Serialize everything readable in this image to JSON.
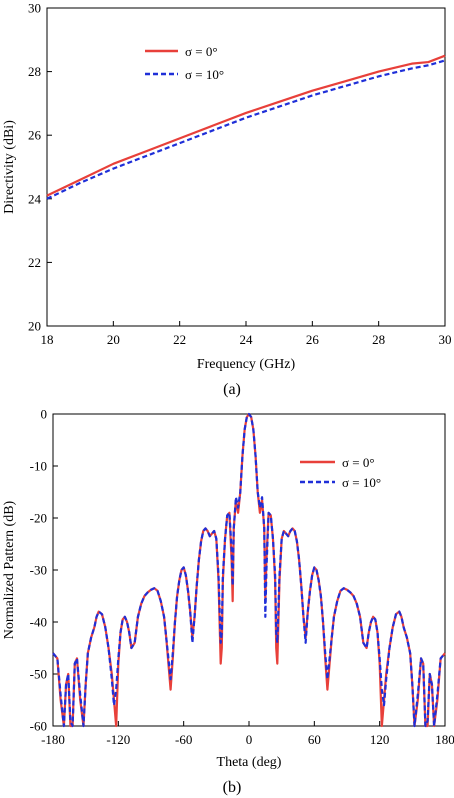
{
  "chart_data": [
    {
      "type": "line",
      "caption": "(a)",
      "xlabel": "Frequency (GHz)",
      "ylabel": "Directivity (dBi)",
      "xlim": [
        18,
        30
      ],
      "ylim": [
        20,
        30
      ],
      "xticks": [
        18,
        20,
        22,
        24,
        26,
        28,
        30
      ],
      "yticks": [
        20,
        22,
        24,
        26,
        28,
        30
      ],
      "grid": false,
      "legend_position": "top-left",
      "series": [
        {
          "name": "σ = 0°",
          "color": "#e8403a",
          "style": "solid",
          "x": [
            18,
            19,
            20,
            21,
            22,
            23,
            24,
            25,
            26,
            27,
            28,
            29,
            29.5,
            30
          ],
          "y": [
            24.1,
            24.6,
            25.1,
            25.5,
            25.9,
            26.3,
            26.7,
            27.05,
            27.4,
            27.7,
            28.0,
            28.25,
            28.3,
            28.5
          ]
        },
        {
          "name": "σ = 10°",
          "color": "#1f2fd8",
          "style": "dashed",
          "x": [
            18,
            19,
            20,
            21,
            22,
            23,
            24,
            25,
            26,
            27,
            28,
            29,
            29.5,
            30
          ],
          "y": [
            24.0,
            24.5,
            24.95,
            25.35,
            25.75,
            26.15,
            26.55,
            26.9,
            27.25,
            27.55,
            27.85,
            28.1,
            28.2,
            28.35
          ]
        }
      ]
    },
    {
      "type": "line",
      "caption": "(b)",
      "xlabel": "Theta (deg)",
      "ylabel": "Normalized Pattern (dB)",
      "xlim": [
        -180,
        180
      ],
      "ylim": [
        -60,
        0
      ],
      "xticks": [
        -180,
        -120,
        -60,
        0,
        60,
        120,
        180
      ],
      "yticks": [
        0,
        -10,
        -20,
        -30,
        -40,
        -50,
        -60
      ],
      "grid": false,
      "legend_position": "top-right",
      "series": [
        {
          "name": "σ = 0°",
          "color": "#e8403a",
          "style": "solid",
          "x": [
            -180,
            -176,
            -173,
            -170,
            -168,
            -166,
            -164,
            -162,
            -160,
            -158,
            -155,
            -152,
            -150,
            -148,
            -145,
            -142,
            -140,
            -138,
            -135,
            -132,
            -129,
            -126,
            -124,
            -122,
            -120,
            -118,
            -116,
            -114,
            -112,
            -110,
            -108,
            -105,
            -102,
            -99,
            -96,
            -93,
            -90,
            -87,
            -84,
            -81,
            -78,
            -76,
            -74,
            -72,
            -70,
            -68,
            -66,
            -64,
            -62,
            -60,
            -58,
            -56,
            -54,
            -52,
            -50,
            -48,
            -46,
            -44,
            -42,
            -40,
            -38,
            -36,
            -34,
            -32,
            -30,
            -28,
            -26,
            -25,
            -24,
            -22,
            -20,
            -18,
            -16,
            -15,
            -14,
            -12,
            -10,
            -8,
            -6,
            -4,
            -2,
            0,
            2,
            4,
            6,
            8,
            10,
            12,
            14,
            15,
            16,
            18,
            20,
            22,
            24,
            25,
            26,
            28,
            30,
            32,
            34,
            36,
            38,
            40,
            42,
            44,
            46,
            48,
            50,
            52,
            54,
            56,
            58,
            60,
            62,
            64,
            66,
            68,
            70,
            72,
            74,
            76,
            78,
            81,
            84,
            87,
            90,
            93,
            96,
            99,
            102,
            105,
            108,
            110,
            112,
            114,
            116,
            118,
            120,
            122,
            124,
            126,
            129,
            132,
            135,
            138,
            140,
            142,
            145,
            148,
            150,
            152,
            155,
            158,
            160,
            162,
            164,
            166,
            168,
            170,
            173,
            176,
            180
          ],
          "y": [
            -46,
            -47,
            -55,
            -60,
            -52,
            -50,
            -60,
            -60,
            -48,
            -47,
            -55,
            -60,
            -52,
            -46,
            -43,
            -41,
            -39,
            -38,
            -38.5,
            -41,
            -45,
            -50,
            -55,
            -60,
            -48,
            -42,
            -39.5,
            -39,
            -40,
            -42,
            -45,
            -44,
            -39,
            -36.5,
            -35,
            -34.3,
            -33.8,
            -33.5,
            -34,
            -36,
            -39,
            -43,
            -48,
            -53,
            -47,
            -40,
            -35,
            -32,
            -30,
            -29.5,
            -31,
            -34,
            -38,
            -43,
            -39,
            -33,
            -28,
            -24.5,
            -22.5,
            -22,
            -22.5,
            -23.5,
            -23,
            -22.5,
            -24,
            -32,
            -48,
            -45,
            -32,
            -24,
            -19.5,
            -19,
            -28,
            -36,
            -22,
            -16.5,
            -19,
            -15,
            -8,
            -3,
            -0.6,
            0,
            -0.6,
            -3,
            -8,
            -15,
            -19,
            -16.5,
            -22,
            -36,
            -28,
            -19,
            -19.5,
            -24,
            -32,
            -45,
            -48,
            -32,
            -24,
            -22.5,
            -23,
            -23.5,
            -22.5,
            -22,
            -22.5,
            -24.5,
            -28,
            -33,
            -39,
            -43,
            -38,
            -34,
            -31,
            -29.5,
            -30,
            -32,
            -35,
            -40,
            -47,
            -53,
            -48,
            -43,
            -39,
            -36,
            -34,
            -33.5,
            -33.8,
            -34.3,
            -35,
            -36.5,
            -39,
            -44,
            -45,
            -42,
            -40,
            -39,
            -39.5,
            -42,
            -48,
            -60,
            -55,
            -50,
            -45,
            -41,
            -38.5,
            -38,
            -39,
            -41,
            -43,
            -46,
            -52,
            -60,
            -55,
            -47,
            -48,
            -60,
            -60,
            -50,
            -52,
            -60,
            -55,
            -47,
            -46
          ]
        },
        {
          "name": "σ = 10°",
          "color": "#1f2fd8",
          "style": "dashed",
          "x": [
            -180,
            -176,
            -173,
            -170,
            -168,
            -166,
            -164,
            -162,
            -160,
            -158,
            -155,
            -152,
            -150,
            -148,
            -145,
            -142,
            -140,
            -138,
            -135,
            -132,
            -129,
            -126,
            -124,
            -122,
            -120,
            -118,
            -116,
            -114,
            -112,
            -110,
            -108,
            -105,
            -102,
            -99,
            -96,
            -93,
            -90,
            -87,
            -84,
            -81,
            -78,
            -76,
            -74,
            -72,
            -70,
            -68,
            -66,
            -64,
            -62,
            -60,
            -58,
            -56,
            -54,
            -52,
            -50,
            -48,
            -46,
            -44,
            -42,
            -40,
            -38,
            -36,
            -34,
            -32,
            -30,
            -28,
            -26,
            -25,
            -24,
            -22,
            -20,
            -18,
            -16,
            -15,
            -14,
            -12,
            -10,
            -8,
            -6,
            -4,
            -2,
            0,
            2,
            4,
            6,
            8,
            10,
            12,
            14,
            15,
            16,
            18,
            20,
            22,
            24,
            25,
            26,
            28,
            30,
            32,
            34,
            36,
            38,
            40,
            42,
            44,
            46,
            48,
            50,
            52,
            54,
            56,
            58,
            60,
            62,
            64,
            66,
            68,
            70,
            72,
            74,
            76,
            78,
            81,
            84,
            87,
            90,
            93,
            96,
            99,
            102,
            105,
            108,
            110,
            112,
            114,
            116,
            118,
            120,
            122,
            124,
            126,
            129,
            132,
            135,
            138,
            140,
            142,
            145,
            148,
            150,
            152,
            155,
            158,
            160,
            162,
            164,
            166,
            168,
            170,
            173,
            176,
            180
          ],
          "y": [
            -46,
            -47,
            -54,
            -60,
            -52,
            -50,
            -59,
            -60,
            -48,
            -47,
            -54,
            -60,
            -52,
            -46,
            -43,
            -41,
            -39,
            -38,
            -38.5,
            -41,
            -45,
            -51,
            -56,
            -53,
            -47,
            -42,
            -39.5,
            -39,
            -40,
            -42,
            -45,
            -44,
            -39,
            -36.5,
            -35,
            -34.3,
            -33.8,
            -33.5,
            -34,
            -36,
            -39,
            -43,
            -47,
            -51,
            -46,
            -40,
            -35,
            -32,
            -30,
            -29.5,
            -31,
            -34,
            -38,
            -44,
            -39,
            -33,
            -28,
            -24.5,
            -22.5,
            -22,
            -22.5,
            -23.5,
            -23,
            -22.5,
            -24,
            -31,
            -44,
            -42,
            -31,
            -24,
            -19.5,
            -19,
            -26,
            -33,
            -22,
            -16,
            -18,
            -15,
            -8,
            -3,
            -0.6,
            0,
            -0.6,
            -3,
            -8,
            -15,
            -18,
            -16,
            -22,
            -39,
            -30,
            -19,
            -19.5,
            -24,
            -31,
            -42,
            -44,
            -31,
            -24,
            -22.5,
            -23,
            -23.5,
            -22.5,
            -22,
            -22.5,
            -24.5,
            -28,
            -33,
            -39,
            -44,
            -38,
            -34,
            -31,
            -29.5,
            -30,
            -32,
            -35,
            -40,
            -46,
            -51,
            -47,
            -43,
            -39,
            -36,
            -34,
            -33.5,
            -33.8,
            -34.3,
            -35,
            -36.5,
            -39,
            -44,
            -45,
            -42,
            -40,
            -39,
            -39.5,
            -42,
            -47,
            -53,
            -56,
            -51,
            -45,
            -41,
            -38.5,
            -38,
            -39,
            -41,
            -43,
            -46,
            -52,
            -60,
            -54,
            -47,
            -48,
            -60,
            -59,
            -50,
            -52,
            -60,
            -54,
            -47,
            -46
          ]
        }
      ]
    }
  ]
}
